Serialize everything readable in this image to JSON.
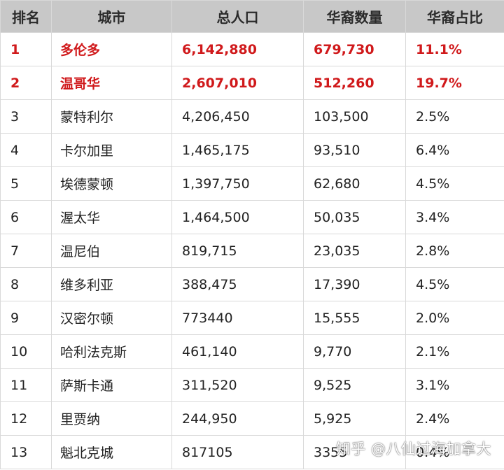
{
  "table": {
    "headers": [
      "排名",
      "城市",
      "总人口",
      "华裔数量",
      "华裔占比"
    ],
    "rows": [
      {
        "rank": "1",
        "city": "多伦多",
        "population": "6,142,880",
        "chinese": "679,730",
        "share": "11.1%",
        "highlight": true
      },
      {
        "rank": "2",
        "city": "温哥华",
        "population": "2,607,010",
        "chinese": "512,260",
        "share": "19.7%",
        "highlight": true
      },
      {
        "rank": "3",
        "city": "蒙特利尔",
        "population": "4,206,450",
        "chinese": "103,500",
        "share": "2.5%",
        "highlight": false
      },
      {
        "rank": "4",
        "city": "卡尔加里",
        "population": "1,465,175",
        "chinese": "93,510",
        "share": "6.4%",
        "highlight": false
      },
      {
        "rank": "5",
        "city": "埃德蒙顿",
        "population": "1,397,750",
        "chinese": "62,680",
        "share": "4.5%",
        "highlight": false
      },
      {
        "rank": "6",
        "city": "渥太华",
        "population": "1,464,500",
        "chinese": "50,035",
        "share": "3.4%",
        "highlight": false
      },
      {
        "rank": "7",
        "city": "温尼伯",
        "population": "819,715",
        "chinese": "23,035",
        "share": "2.8%",
        "highlight": false
      },
      {
        "rank": "8",
        "city": "维多利亚",
        "population": "388,475",
        "chinese": "17,390",
        "share": "4.5%",
        "highlight": false
      },
      {
        "rank": "9",
        "city": "汉密尔顿",
        "population": "773440",
        "chinese": "15,555",
        "share": "2.0%",
        "highlight": false
      },
      {
        "rank": "10",
        "city": "哈利法克斯",
        "population": "461,140",
        "chinese": "9,770",
        "share": "2.1%",
        "highlight": false
      },
      {
        "rank": "11",
        "city": "萨斯卡通",
        "population": "311,520",
        "chinese": "9,525",
        "share": "3.1%",
        "highlight": false
      },
      {
        "rank": "12",
        "city": "里贾纳",
        "population": "244,950",
        "chinese": "5,925",
        "share": "2.4%",
        "highlight": false
      },
      {
        "rank": "13",
        "city": "魁北克城",
        "population": "817105",
        "chinese": "3355",
        "share": "0.4%",
        "highlight": false
      }
    ]
  },
  "watermark": "知乎 @八仙过海加拿大",
  "colors": {
    "header_bg": "#c8c8c8",
    "highlight_text": "#d0191b",
    "border": "#d9d9d9"
  }
}
